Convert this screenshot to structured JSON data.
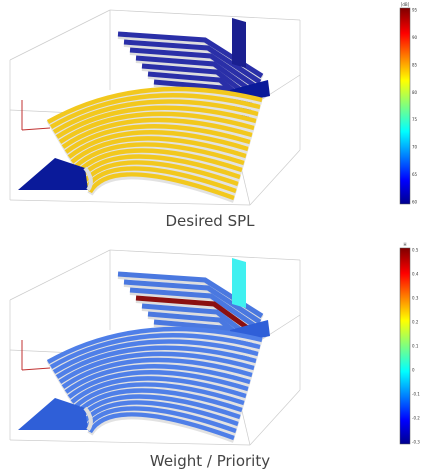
{
  "panels": [
    {
      "caption": "Desired SPL",
      "colorbar": {
        "label": "[dB]",
        "ticks": [
          "95",
          "90",
          "85",
          "80",
          "75",
          "70",
          "65",
          "60"
        ]
      }
    },
    {
      "caption": "Weight / Priority",
      "colorbar": {
        "label": "H",
        "ticks": [
          "0.5",
          "0.4",
          "0.3",
          "0.2",
          "0.1",
          "0",
          "-0.1",
          "-0.2",
          "-0.3"
        ]
      }
    }
  ]
}
